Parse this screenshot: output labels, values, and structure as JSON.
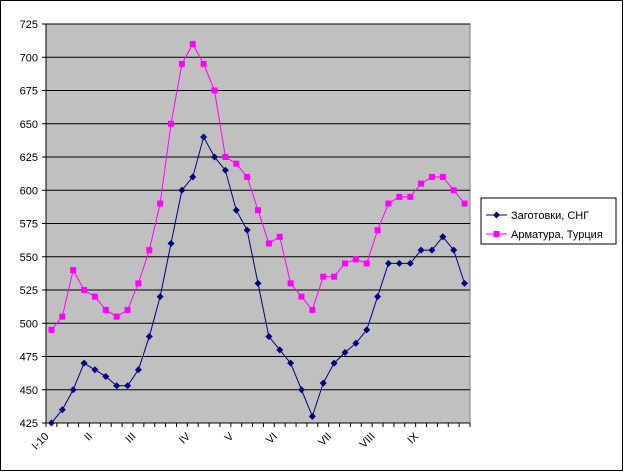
{
  "chart_data": {
    "type": "line",
    "title": "",
    "xlabel": "",
    "ylabel": "",
    "ylim": [
      425,
      725
    ],
    "yticks": [
      425,
      450,
      475,
      500,
      525,
      550,
      575,
      600,
      625,
      650,
      675,
      700,
      725
    ],
    "grid": true,
    "legend_position": "right",
    "x_labels": [
      {
        "index": 0,
        "label": "I-10"
      },
      {
        "index": 4,
        "label": "II"
      },
      {
        "index": 8,
        "label": "III"
      },
      {
        "index": 13,
        "label": "IV"
      },
      {
        "index": 17,
        "label": "V"
      },
      {
        "index": 21,
        "label": "VI"
      },
      {
        "index": 26,
        "label": "VII"
      },
      {
        "index": 30,
        "label": "VIII"
      },
      {
        "index": 34,
        "label": "IX"
      }
    ],
    "series": [
      {
        "name": "Заготовки, СНГ",
        "color": "#000080",
        "marker": "diamond",
        "values": [
          425,
          435,
          450,
          470,
          465,
          460,
          453,
          453,
          465,
          490,
          520,
          560,
          600,
          610,
          640,
          625,
          615,
          585,
          570,
          530,
          490,
          480,
          470,
          450,
          430,
          455,
          470,
          478,
          485,
          495,
          520,
          545,
          545,
          545,
          555,
          555,
          565,
          555,
          530
        ]
      },
      {
        "name": "Арматура, Турция",
        "color": "#ff00ff",
        "marker": "square",
        "values": [
          495,
          505,
          540,
          525,
          520,
          510,
          505,
          510,
          530,
          555,
          590,
          650,
          695,
          710,
          695,
          675,
          625,
          620,
          610,
          585,
          560,
          565,
          530,
          520,
          510,
          535,
          535,
          545,
          548,
          545,
          570,
          590,
          595,
          595,
          605,
          610,
          610,
          600,
          590
        ]
      }
    ]
  }
}
